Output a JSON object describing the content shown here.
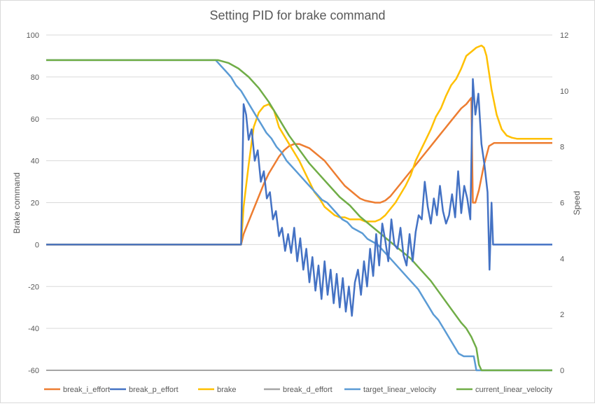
{
  "chart_data": {
    "type": "line",
    "title": "Setting PID for brake command",
    "ylabel": "Brake command",
    "y2label": "Speed",
    "ylim": [
      -60,
      100
    ],
    "y_ticks": [
      100,
      80,
      60,
      40,
      20,
      0,
      -20,
      -40,
      -60
    ],
    "y2lim": [
      0,
      12
    ],
    "y2_ticks": [
      12,
      10,
      8,
      6,
      4,
      2,
      0
    ],
    "xlim": [
      0,
      100
    ],
    "grid": true,
    "legend_position": "bottom",
    "series": [
      {
        "name": "break_i_effort",
        "axis": "left",
        "color": "#ed7d31",
        "points": [
          [
            0,
            0
          ],
          [
            38.5,
            0
          ],
          [
            39,
            5
          ],
          [
            40,
            11
          ],
          [
            41,
            17
          ],
          [
            42,
            23
          ],
          [
            43,
            29
          ],
          [
            44,
            34
          ],
          [
            45,
            38
          ],
          [
            46,
            42
          ],
          [
            47,
            45
          ],
          [
            48,
            47
          ],
          [
            49,
            48
          ],
          [
            50,
            48
          ],
          [
            51,
            47
          ],
          [
            52,
            46
          ],
          [
            53,
            44
          ],
          [
            54,
            42
          ],
          [
            55,
            40
          ],
          [
            56,
            37
          ],
          [
            57,
            34
          ],
          [
            58,
            31
          ],
          [
            59,
            28
          ],
          [
            60,
            26
          ],
          [
            61,
            24
          ],
          [
            62,
            22
          ],
          [
            63,
            21
          ],
          [
            64,
            20.5
          ],
          [
            65,
            20
          ],
          [
            66,
            20
          ],
          [
            67,
            21
          ],
          [
            68,
            23
          ],
          [
            69,
            26
          ],
          [
            70,
            29
          ],
          [
            71,
            32
          ],
          [
            72,
            35
          ],
          [
            73,
            38
          ],
          [
            74,
            41
          ],
          [
            75,
            44
          ],
          [
            76,
            47
          ],
          [
            77,
            50
          ],
          [
            78,
            53
          ],
          [
            79,
            56
          ],
          [
            80,
            59
          ],
          [
            81,
            62
          ],
          [
            82,
            65
          ],
          [
            83,
            67
          ],
          [
            84,
            70
          ],
          [
            84.3,
            20
          ],
          [
            84.8,
            20
          ],
          [
            85.5,
            26
          ],
          [
            86.5,
            38
          ],
          [
            87.5,
            47
          ],
          [
            88.5,
            48.5
          ],
          [
            100,
            48.5
          ]
        ]
      },
      {
        "name": "break_p_effort",
        "axis": "left",
        "color": "#4472c4",
        "points": [
          [
            0,
            0
          ],
          [
            38.5,
            0
          ],
          [
            39,
            67
          ],
          [
            39.5,
            62
          ],
          [
            40,
            50
          ],
          [
            40.6,
            55
          ],
          [
            41.2,
            40
          ],
          [
            41.8,
            45
          ],
          [
            42.4,
            30
          ],
          [
            43,
            35
          ],
          [
            43.6,
            22
          ],
          [
            44.2,
            25
          ],
          [
            44.8,
            12
          ],
          [
            45.4,
            16
          ],
          [
            46,
            4
          ],
          [
            46.6,
            8
          ],
          [
            47.2,
            -3
          ],
          [
            47.8,
            5
          ],
          [
            48.4,
            -4
          ],
          [
            49,
            8
          ],
          [
            49.6,
            -8
          ],
          [
            50.2,
            3
          ],
          [
            50.8,
            -12
          ],
          [
            51.4,
            -2
          ],
          [
            52,
            -18
          ],
          [
            52.6,
            -6
          ],
          [
            53.2,
            -22
          ],
          [
            53.8,
            -10
          ],
          [
            54.4,
            -26
          ],
          [
            55,
            -8
          ],
          [
            55.6,
            -24
          ],
          [
            56.2,
            -12
          ],
          [
            56.8,
            -28
          ],
          [
            57.4,
            -14
          ],
          [
            58,
            -30
          ],
          [
            58.6,
            -16
          ],
          [
            59.2,
            -32
          ],
          [
            59.8,
            -20
          ],
          [
            60.4,
            -34
          ],
          [
            61,
            -18
          ],
          [
            61.6,
            -12
          ],
          [
            62.2,
            -24
          ],
          [
            62.8,
            -8
          ],
          [
            63.4,
            -20
          ],
          [
            64,
            -2
          ],
          [
            64.6,
            -15
          ],
          [
            65.2,
            5
          ],
          [
            65.8,
            -10
          ],
          [
            66.4,
            10
          ],
          [
            67,
            2
          ],
          [
            67.6,
            -8
          ],
          [
            68.2,
            12
          ],
          [
            68.8,
            0
          ],
          [
            69.4,
            -2
          ],
          [
            70,
            8
          ],
          [
            70.6,
            -5
          ],
          [
            71.2,
            -10
          ],
          [
            71.8,
            5
          ],
          [
            72.4,
            -8
          ],
          [
            73,
            6
          ],
          [
            73.6,
            14
          ],
          [
            74.2,
            12
          ],
          [
            74.8,
            30
          ],
          [
            75.4,
            18
          ],
          [
            76,
            10
          ],
          [
            76.6,
            22
          ],
          [
            77.2,
            14
          ],
          [
            77.8,
            28
          ],
          [
            78.4,
            16
          ],
          [
            79,
            10
          ],
          [
            79.6,
            14
          ],
          [
            80.2,
            24
          ],
          [
            80.8,
            13
          ],
          [
            81.4,
            35
          ],
          [
            82,
            15
          ],
          [
            82.6,
            28
          ],
          [
            83.2,
            22
          ],
          [
            83.8,
            12
          ],
          [
            84.3,
            79
          ],
          [
            84.8,
            62
          ],
          [
            85.4,
            72
          ],
          [
            86,
            48
          ],
          [
            86.6,
            38
          ],
          [
            87.2,
            25
          ],
          [
            87.6,
            -12
          ],
          [
            88,
            20
          ],
          [
            88.3,
            0
          ],
          [
            88.6,
            0
          ],
          [
            100,
            0
          ]
        ]
      },
      {
        "name": "brake",
        "axis": "left",
        "color": "#ffc000",
        "points": [
          [
            0,
            0
          ],
          [
            38.5,
            0
          ],
          [
            39,
            18
          ],
          [
            40,
            38
          ],
          [
            41,
            56
          ],
          [
            42,
            63
          ],
          [
            43,
            66
          ],
          [
            44,
            67
          ],
          [
            45,
            64
          ],
          [
            46,
            56
          ],
          [
            47,
            52
          ],
          [
            48,
            48
          ],
          [
            49,
            44
          ],
          [
            50,
            40
          ],
          [
            51,
            35
          ],
          [
            52,
            30
          ],
          [
            53,
            25
          ],
          [
            54,
            22
          ],
          [
            55,
            18
          ],
          [
            56,
            16
          ],
          [
            57,
            14
          ],
          [
            58,
            13
          ],
          [
            59,
            13
          ],
          [
            60,
            12
          ],
          [
            61,
            12
          ],
          [
            62,
            12
          ],
          [
            63,
            11
          ],
          [
            64,
            11
          ],
          [
            65,
            11
          ],
          [
            66,
            12
          ],
          [
            67,
            14
          ],
          [
            68,
            17
          ],
          [
            69,
            20
          ],
          [
            70,
            24
          ],
          [
            71,
            28
          ],
          [
            72,
            33
          ],
          [
            73,
            40
          ],
          [
            74,
            45
          ],
          [
            75,
            50
          ],
          [
            76,
            55
          ],
          [
            77,
            61
          ],
          [
            78,
            65
          ],
          [
            79,
            71
          ],
          [
            80,
            76
          ],
          [
            81,
            79
          ],
          [
            82,
            84
          ],
          [
            83,
            90
          ],
          [
            84,
            92
          ],
          [
            85,
            94
          ],
          [
            86,
            95
          ],
          [
            86.5,
            94
          ],
          [
            87,
            90
          ],
          [
            88,
            74
          ],
          [
            89,
            62
          ],
          [
            90,
            55
          ],
          [
            91,
            52
          ],
          [
            92,
            51
          ],
          [
            93,
            50.5
          ],
          [
            100,
            50.5
          ]
        ]
      },
      {
        "name": "break_d_effort",
        "axis": "left",
        "color": "#a5a5a5",
        "points": [
          [
            0,
            -60
          ],
          [
            100,
            -60
          ]
        ]
      },
      {
        "name": "target_linear_velocity",
        "axis": "right",
        "color": "#5b9bd5",
        "points": [
          [
            0,
            11.1
          ],
          [
            33.5,
            11.1
          ],
          [
            34.5,
            10.9
          ],
          [
            35.5,
            10.7
          ],
          [
            36.5,
            10.5
          ],
          [
            37.5,
            10.2
          ],
          [
            38.5,
            10
          ],
          [
            39.5,
            9.7
          ],
          [
            40.5,
            9.4
          ],
          [
            41.5,
            9.1
          ],
          [
            42.5,
            8.8
          ],
          [
            43.5,
            8.5
          ],
          [
            44.5,
            8.3
          ],
          [
            45.5,
            8.0
          ],
          [
            46.5,
            7.8
          ],
          [
            47.5,
            7.5
          ],
          [
            48.5,
            7.3
          ],
          [
            49.5,
            7.1
          ],
          [
            50.5,
            6.9
          ],
          [
            51.5,
            6.7
          ],
          [
            52.5,
            6.5
          ],
          [
            53.5,
            6.3
          ],
          [
            54.5,
            6.1
          ],
          [
            55.5,
            6.0
          ],
          [
            56.5,
            5.8
          ],
          [
            57.5,
            5.6
          ],
          [
            58.5,
            5.4
          ],
          [
            59.5,
            5.3
          ],
          [
            60.5,
            5.1
          ],
          [
            61.5,
            5.0
          ],
          [
            62.5,
            4.9
          ],
          [
            63.5,
            4.7
          ],
          [
            64.5,
            4.6
          ],
          [
            65.5,
            4.5
          ],
          [
            66.5,
            4.3
          ],
          [
            67.5,
            4.1
          ],
          [
            68.5,
            3.9
          ],
          [
            69.5,
            3.7
          ],
          [
            70.5,
            3.5
          ],
          [
            71.5,
            3.3
          ],
          [
            72.5,
            3.1
          ],
          [
            73.5,
            2.9
          ],
          [
            74.5,
            2.6
          ],
          [
            75.5,
            2.3
          ],
          [
            76.5,
            2.0
          ],
          [
            77.5,
            1.8
          ],
          [
            78.5,
            1.5
          ],
          [
            79.5,
            1.2
          ],
          [
            80.5,
            0.9
          ],
          [
            81.5,
            0.6
          ],
          [
            82.5,
            0.5
          ],
          [
            84.5,
            0.5
          ],
          [
            85,
            0
          ],
          [
            100,
            0
          ]
        ]
      },
      {
        "name": "current_linear_velocity",
        "axis": "right",
        "color": "#70ad47",
        "points": [
          [
            0,
            11.1
          ],
          [
            34,
            11.1
          ],
          [
            36,
            11.0
          ],
          [
            38,
            10.8
          ],
          [
            40,
            10.5
          ],
          [
            42,
            10.1
          ],
          [
            44,
            9.6
          ],
          [
            46,
            9.0
          ],
          [
            48,
            8.4
          ],
          [
            50,
            7.9
          ],
          [
            52,
            7.4
          ],
          [
            54,
            7.0
          ],
          [
            56,
            6.6
          ],
          [
            58,
            6.2
          ],
          [
            60,
            5.9
          ],
          [
            62,
            5.5
          ],
          [
            64,
            5.2
          ],
          [
            66,
            4.9
          ],
          [
            68,
            4.6
          ],
          [
            70,
            4.3
          ],
          [
            72,
            4.0
          ],
          [
            74,
            3.6
          ],
          [
            76,
            3.2
          ],
          [
            78,
            2.7
          ],
          [
            80,
            2.2
          ],
          [
            82,
            1.7
          ],
          [
            83,
            1.5
          ],
          [
            84,
            1.2
          ],
          [
            85,
            0.8
          ],
          [
            85.5,
            0.2
          ],
          [
            86,
            0
          ],
          [
            100,
            0
          ]
        ]
      }
    ]
  }
}
